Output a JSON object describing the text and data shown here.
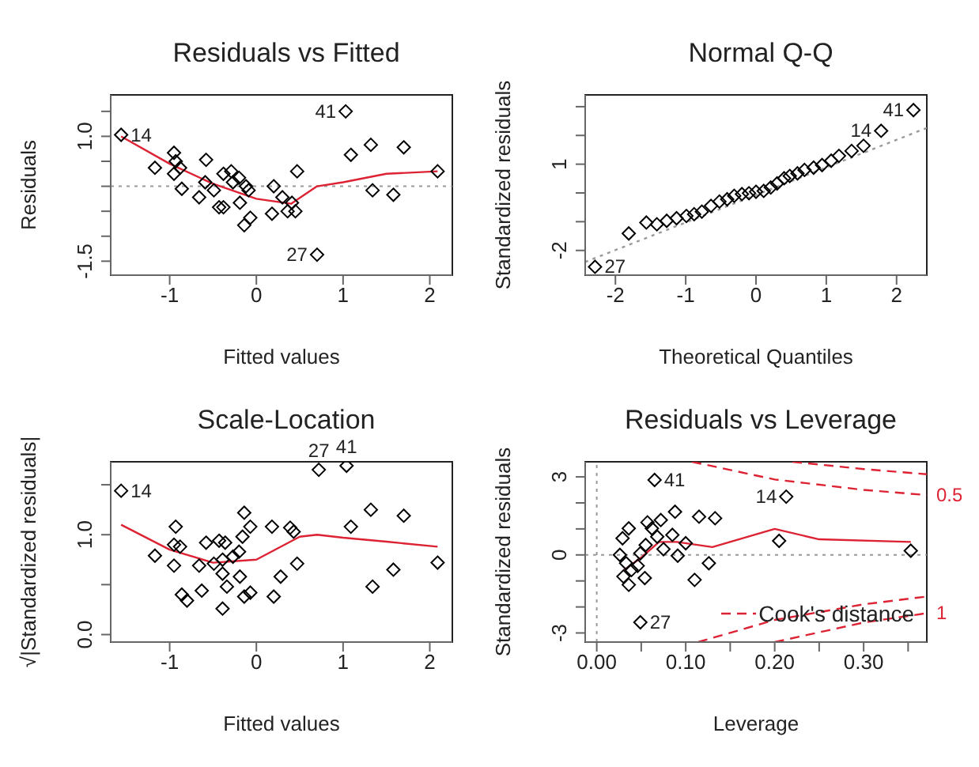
{
  "chart_data": [
    {
      "type": "scatter",
      "title": "Residuals vs Fitted",
      "xlabel": "Fitted values",
      "ylabel": "Residuals",
      "marker": "diamond",
      "grid": false,
      "xlim": [
        -1.68,
        2.26
      ],
      "xticks": [
        -1,
        0,
        1,
        2
      ],
      "ylim": [
        -1.78,
        1.83
      ],
      "yticks": [
        {
          "value": -1.5,
          "label": "-1.5"
        },
        {
          "value": -1,
          "label": null
        },
        {
          "value": -0.5,
          "label": null
        },
        {
          "value": 0,
          "label": null
        },
        {
          "value": 0.5,
          "label": null
        },
        {
          "value": 1,
          "label": "1.0"
        },
        {
          "value": 1.5,
          "label": null
        }
      ],
      "series": [
        {
          "color": "#000000",
          "x": [
            -1.56,
            -1.17,
            -0.95,
            -0.93,
            -0.88,
            -0.86,
            -0.95,
            -0.58,
            -0.66,
            -0.59,
            -0.49,
            -0.43,
            -0.38,
            -0.38,
            -0.29,
            -0.27,
            -0.2,
            -0.19,
            -0.14,
            -0.12,
            -0.09,
            -0.07,
            0.18,
            0.2,
            0.3,
            0.36,
            0.41,
            0.45,
            0.47,
            0.7,
            1.03,
            1.09,
            1.32,
            1.34,
            1.58,
            1.7,
            2.09
          ],
          "values": [
            1.03,
            0.37,
            0.67,
            0.5,
            0.37,
            -0.05,
            0.25,
            0.53,
            -0.22,
            0.08,
            -0.08,
            -0.42,
            0.25,
            -0.42,
            0.3,
            0.08,
            0.17,
            -0.33,
            -0.78,
            0,
            -0.08,
            -0.63,
            -0.55,
            0,
            -0.22,
            -0.5,
            -0.33,
            -0.5,
            0.3,
            -1.37,
            1.5,
            0.63,
            0.83,
            -0.08,
            -0.17,
            0.78,
            0.3
          ]
        },
        {
          "type": "line",
          "marker": "none",
          "color": "#dd2233",
          "x": [
            -1.56,
            -1,
            -0.5,
            0,
            0.4,
            0.7,
            1,
            1.5,
            2.09
          ],
          "values": [
            1,
            0.45,
            0.05,
            -0.25,
            -0.35,
            0,
            0.08,
            0.25,
            0.3
          ]
        }
      ],
      "ref_lines": [
        {
          "axis": "y",
          "value": 0,
          "color": "#999999",
          "line_style": "dotted"
        }
      ],
      "annotations": [
        {
          "text": "14",
          "x": -1.56,
          "y": 1.03
        },
        {
          "text": "27",
          "x": 0.7,
          "y": -1.37
        },
        {
          "text": "41",
          "x": 1.03,
          "y": 1.5
        }
      ]
    },
    {
      "type": "scatter",
      "title": "Normal Q-Q",
      "xlabel": "Theoretical Quantiles",
      "ylabel": "Standardized residuals",
      "marker": "diamond",
      "grid": false,
      "xlim": [
        -2.43,
        2.43
      ],
      "xticks": [
        -2,
        -1,
        0,
        1,
        2
      ],
      "ylim": [
        -2.86,
        3.41
      ],
      "yticks": [
        {
          "value": -2,
          "label": "-2"
        },
        {
          "value": -1,
          "label": null
        },
        {
          "value": 0,
          "label": null
        },
        {
          "value": 1,
          "label": "1"
        },
        {
          "value": 2,
          "label": null
        },
        {
          "value": 3,
          "label": null
        }
      ],
      "series": [
        {
          "color": "#000000",
          "x": [
            -2.29,
            -1.81,
            -1.56,
            -1.41,
            -1.27,
            -1.13,
            -0.99,
            -0.88,
            -0.77,
            -0.64,
            -0.52,
            -0.41,
            -0.31,
            -0.2,
            -0.1,
            0,
            0.11,
            0.21,
            0.3,
            0.4,
            0.48,
            0.59,
            0.69,
            0.82,
            0.94,
            1.07,
            1.18,
            1.36,
            1.53,
            1.78,
            2.24
          ],
          "values": [
            -2.57,
            -1.41,
            -1.03,
            -1.09,
            -0.97,
            -0.88,
            -0.8,
            -0.74,
            -0.65,
            -0.45,
            -0.3,
            -0.22,
            -0.1,
            -0.04,
            -0.01,
            0.04,
            0.07,
            0.19,
            0.33,
            0.51,
            0.59,
            0.68,
            0.8,
            0.88,
            0.97,
            1.12,
            1.29,
            1.46,
            1.64,
            2.16,
            2.88
          ]
        },
        {
          "type": "line",
          "marker": "none",
          "color": "#999999",
          "line_style": "dotted",
          "x": [
            -2.43,
            2.43
          ],
          "values": [
            -2.4,
            2.26
          ]
        }
      ],
      "annotations": [
        {
          "text": "27",
          "x": -2.29,
          "y": -2.57
        },
        {
          "text": "14",
          "x": 1.78,
          "y": 2.16
        },
        {
          "text": "41",
          "x": 2.24,
          "y": 2.88
        }
      ]
    },
    {
      "type": "scatter",
      "title": "Scale-Location",
      "xlabel": "Fitted values",
      "ylabel": "√|Standardized residuals|",
      "marker": "diamond",
      "grid": false,
      "xlim": [
        -1.68,
        2.26
      ],
      "xticks": [
        -1,
        0,
        1,
        2
      ],
      "ylim": [
        -0.075,
        1.73
      ],
      "yticks": [
        {
          "value": 0,
          "label": "0.0"
        },
        {
          "value": 0.5,
          "label": null
        },
        {
          "value": 1,
          "label": "1.0"
        },
        {
          "value": 1.5,
          "label": null
        }
      ],
      "series": [
        {
          "color": "#000000",
          "x": [
            -1.56,
            -1.17,
            -0.93,
            -0.95,
            -0.88,
            -0.95,
            -0.86,
            -0.8,
            -0.63,
            -0.66,
            -0.58,
            -0.49,
            -0.43,
            -0.39,
            -0.36,
            -0.39,
            -0.34,
            -0.39,
            -0.27,
            -0.2,
            -0.19,
            -0.16,
            -0.14,
            -0.14,
            -0.07,
            -0.07,
            0.18,
            0.2,
            0.28,
            0.39,
            0.43,
            0.47,
            0.72,
            1.04,
            1.09,
            1.32,
            1.34,
            1.58,
            1.7,
            2.09
          ],
          "values": [
            1.44,
            0.79,
            1.08,
            0.9,
            0.88,
            0.69,
            0.4,
            0.34,
            0.44,
            0.69,
            0.92,
            0.71,
            0.94,
            0.75,
            0.92,
            0.61,
            0.48,
            0.26,
            0.78,
            0.83,
            0.58,
            0.98,
            1.22,
            0.38,
            1.08,
            0.42,
            1.08,
            0.38,
            0.58,
            1.07,
            1.03,
            0.71,
            1.65,
            1.69,
            1.08,
            1.25,
            0.48,
            0.65,
            1.19,
            0.72
          ]
        },
        {
          "type": "line",
          "marker": "none",
          "color": "#dd2233",
          "x": [
            -1.56,
            -1,
            -0.5,
            0,
            0.5,
            0.7,
            1,
            1.5,
            2.09
          ],
          "values": [
            1.1,
            0.85,
            0.72,
            0.75,
            0.98,
            1,
            0.97,
            0.93,
            0.88
          ]
        }
      ],
      "annotations": [
        {
          "text": "14",
          "x": -1.56,
          "y": 1.44
        },
        {
          "text": "27",
          "x": 0.72,
          "y": 1.65
        },
        {
          "text": "41",
          "x": 1.04,
          "y": 1.69
        }
      ]
    },
    {
      "type": "scatter",
      "title": "Residuals vs Leverage",
      "xlabel": "Leverage",
      "ylabel": "Standardized residuals",
      "marker": "diamond",
      "grid": false,
      "legend": "bottom right",
      "xlim": [
        -0.013,
        0.371
      ],
      "ylim": [
        -3.35,
        3.58
      ],
      "xticks": [
        {
          "value": 0,
          "label": "0.00"
        },
        {
          "value": 0.05,
          "label": null
        },
        {
          "value": 0.1,
          "label": "0.10"
        },
        {
          "value": 0.15,
          "label": null
        },
        {
          "value": 0.2,
          "label": "0.20"
        },
        {
          "value": 0.25,
          "label": null
        },
        {
          "value": 0.3,
          "label": "0.30"
        },
        {
          "value": 0.35,
          "label": null
        }
      ],
      "yticks": [
        {
          "value": -3,
          "label": "-3"
        },
        {
          "value": -2,
          "label": null
        },
        {
          "value": -1,
          "label": null
        },
        {
          "value": 0,
          "label": "0"
        },
        {
          "value": 1,
          "label": null
        },
        {
          "value": 2,
          "label": null
        },
        {
          "value": 3,
          "label": "3"
        }
      ],
      "series": [
        {
          "color": "#000000",
          "x": [
            0.065,
            0.057,
            0.072,
            0.088,
            0.115,
            0.068,
            0.062,
            0.075,
            0.085,
            0.091,
            0.1,
            0.036,
            0.029,
            0.026,
            0.033,
            0.039,
            0.03,
            0.036,
            0.046,
            0.049,
            0.054,
            0.055,
            0.11,
            0.126,
            0.133,
            0.049,
            0.213,
            0.205,
            0.353
          ],
          "values": [
            2.88,
            1.25,
            1.34,
            1.66,
            1.47,
            0.7,
            1.02,
            0.22,
            0.77,
            -0.03,
            0.45,
            1.02,
            0.64,
            0,
            -0.32,
            -0.58,
            -0.83,
            -1.15,
            -0.42,
            0.06,
            -0.89,
            0.38,
            -0.96,
            -0.32,
            1.41,
            -2.59,
            2.24,
            0.54,
            0.16
          ]
        },
        {
          "type": "line",
          "marker": "none",
          "color": "#dd2233",
          "x": [
            0.03,
            0.05,
            0.07,
            0.09,
            0.13,
            0.2,
            0.25,
            0.353
          ],
          "values": [
            -0.6,
            -0.1,
            0.5,
            0.5,
            0.3,
            1,
            0.6,
            0.5
          ]
        },
        {
          "type": "line",
          "marker": "none",
          "color": "#dd2233",
          "line_style": "dashed",
          "name": "Cook's distance",
          "x": [
            0.114,
            0.2,
            0.3,
            0.371
          ],
          "values": [
            -3.35,
            -2.5,
            -1.9,
            -1.6
          ]
        },
        {
          "type": "line",
          "marker": "none",
          "color": "#dd2233",
          "line_style": "dashed",
          "x": [
            0.107,
            0.2,
            0.3,
            0.371
          ],
          "values": [
            3.58,
            2.9,
            2.5,
            2.3
          ]
        },
        {
          "type": "line",
          "marker": "none",
          "color": "#dd2233",
          "line_style": "dashed",
          "x": [
            0.22,
            0.3,
            0.371
          ],
          "values": [
            3.58,
            3.3,
            3.1
          ]
        },
        {
          "type": "line",
          "marker": "none",
          "color": "#dd2233",
          "line_style": "dashed",
          "x": [
            0.2,
            0.3,
            0.371
          ],
          "values": [
            -3.35,
            -2.6,
            -2.24
          ]
        }
      ],
      "ref_lines": [
        {
          "axis": "y",
          "value": 0,
          "color": "#999999",
          "line_style": "dotted"
        },
        {
          "axis": "x",
          "value": 0,
          "color": "#999999",
          "line_style": "dotted"
        }
      ],
      "annotations": [
        {
          "text": "41",
          "x": 0.065,
          "y": 2.88
        },
        {
          "text": "27",
          "x": 0.049,
          "y": -2.59
        },
        {
          "text": "14",
          "x": 0.213,
          "y": 2.24
        },
        {
          "text": "0.5",
          "x": 0.371,
          "y": 2.3
        },
        {
          "text": "1",
          "x": 0.371,
          "y": -2.24
        }
      ]
    }
  ]
}
